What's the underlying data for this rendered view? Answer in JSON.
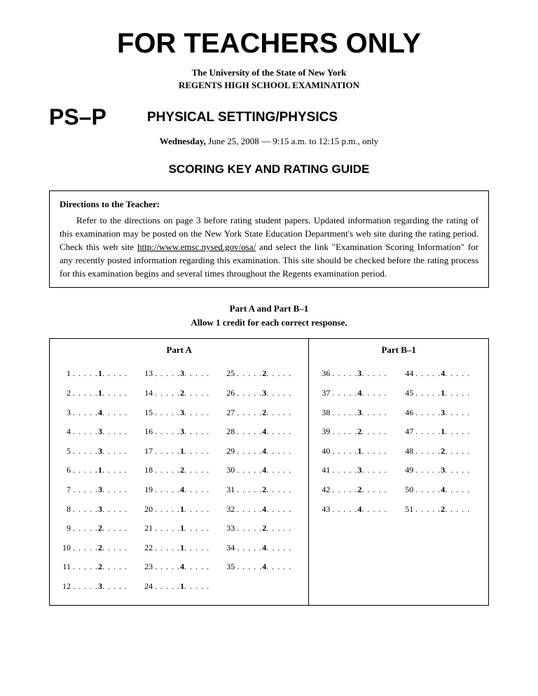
{
  "header": {
    "main_title": "FOR TEACHERS ONLY",
    "university": "The University of the State of New York",
    "exam_type": "REGENTS HIGH SCHOOL EXAMINATION",
    "code": "PS–P",
    "subject": "PHYSICAL SETTING/PHYSICS",
    "date_bold": "Wednesday,",
    "date_rest": " June 25, 2008 — 9:15 a.m. to 12:15 p.m., only",
    "guide_title": "SCORING KEY AND RATING GUIDE"
  },
  "directions": {
    "label": "Directions to the Teacher:",
    "text_before": "Refer to the directions on page 3 before rating student papers. Updated information regarding the rating of this examination may be posted on the New York State Education Department's web site during the rating period. Check this web site ",
    "url": "http://www.emsc.nysed.gov/osa/",
    "text_after": " and select the link \"Examination Scoring Information\" for any recently posted information regarding this examination. This site should be checked before the rating process for this examination begins and several times throughout the Regents examination period."
  },
  "parts": {
    "title": "Part A and Part B–1",
    "subtitle": "Allow 1 credit for each correct response.",
    "part_a_label": "Part A",
    "part_b_label": "Part B–1",
    "part_a": [
      [
        {
          "n": "1",
          "a": "1"
        },
        {
          "n": "2",
          "a": "1"
        },
        {
          "n": "3",
          "a": "4"
        },
        {
          "n": "4",
          "a": "3"
        },
        {
          "n": "5",
          "a": "3"
        },
        {
          "n": "6",
          "a": "1"
        },
        {
          "n": "7",
          "a": "3"
        },
        {
          "n": "8",
          "a": "3"
        },
        {
          "n": "9",
          "a": "2"
        },
        {
          "n": "10",
          "a": "2"
        },
        {
          "n": "11",
          "a": "2"
        },
        {
          "n": "12",
          "a": "3"
        }
      ],
      [
        {
          "n": "13",
          "a": "3"
        },
        {
          "n": "14",
          "a": "2"
        },
        {
          "n": "15",
          "a": "3"
        },
        {
          "n": "16",
          "a": "3"
        },
        {
          "n": "17",
          "a": "1"
        },
        {
          "n": "18",
          "a": "2"
        },
        {
          "n": "19",
          "a": "4"
        },
        {
          "n": "20",
          "a": "1"
        },
        {
          "n": "21",
          "a": "1"
        },
        {
          "n": "22",
          "a": "1"
        },
        {
          "n": "23",
          "a": "4"
        },
        {
          "n": "24",
          "a": "1"
        }
      ],
      [
        {
          "n": "25",
          "a": "2"
        },
        {
          "n": "26",
          "a": "3"
        },
        {
          "n": "27",
          "a": "2"
        },
        {
          "n": "28",
          "a": "4"
        },
        {
          "n": "29",
          "a": "4"
        },
        {
          "n": "30",
          "a": "4"
        },
        {
          "n": "31",
          "a": "2"
        },
        {
          "n": "32",
          "a": "4"
        },
        {
          "n": "33",
          "a": "2"
        },
        {
          "n": "34",
          "a": "4"
        },
        {
          "n": "35",
          "a": "4"
        }
      ]
    ],
    "part_b": [
      [
        {
          "n": "36",
          "a": "3"
        },
        {
          "n": "37",
          "a": "4"
        },
        {
          "n": "38",
          "a": "3"
        },
        {
          "n": "39",
          "a": "2"
        },
        {
          "n": "40",
          "a": "1"
        },
        {
          "n": "41",
          "a": "3"
        },
        {
          "n": "42",
          "a": "2"
        },
        {
          "n": "43",
          "a": "4"
        }
      ],
      [
        {
          "n": "44",
          "a": "4"
        },
        {
          "n": "45",
          "a": "1"
        },
        {
          "n": "46",
          "a": "3"
        },
        {
          "n": "47",
          "a": "1"
        },
        {
          "n": "48",
          "a": "2"
        },
        {
          "n": "49",
          "a": "3"
        },
        {
          "n": "50",
          "a": "4"
        },
        {
          "n": "51",
          "a": "2"
        }
      ]
    ]
  },
  "styling": {
    "page_bg": "#ffffff",
    "text_color": "#000000",
    "border_color": "#000000"
  }
}
